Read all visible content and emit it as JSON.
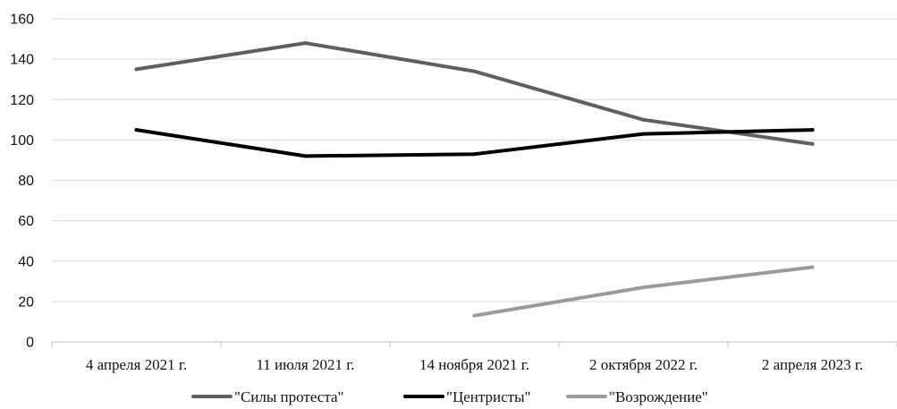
{
  "chart_data": {
    "type": "line",
    "categories": [
      "4 апреля 2021 г.",
      "11 июля 2021 г.",
      "14 ноября 2021 г.",
      "2 октября 2022 г.",
      "2 апреля 2023 г."
    ],
    "series": [
      {
        "name": "\"Силы протеста\"",
        "values": [
          135,
          148,
          134,
          110,
          98
        ],
        "color": "#5f5f5f"
      },
      {
        "name": "\"Центристы\"",
        "values": [
          105,
          92,
          93,
          103,
          105
        ],
        "color": "#000000"
      },
      {
        "name": "\"Возрождение\"",
        "values": [
          null,
          null,
          13,
          27,
          37
        ],
        "color": "#9a9a9a"
      }
    ],
    "title": "",
    "xlabel": "",
    "ylabel": "",
    "ylim": [
      0,
      160
    ],
    "yticks": [
      0,
      20,
      40,
      60,
      80,
      100,
      120,
      140,
      160
    ],
    "grid": true,
    "legend_position": "bottom"
  }
}
